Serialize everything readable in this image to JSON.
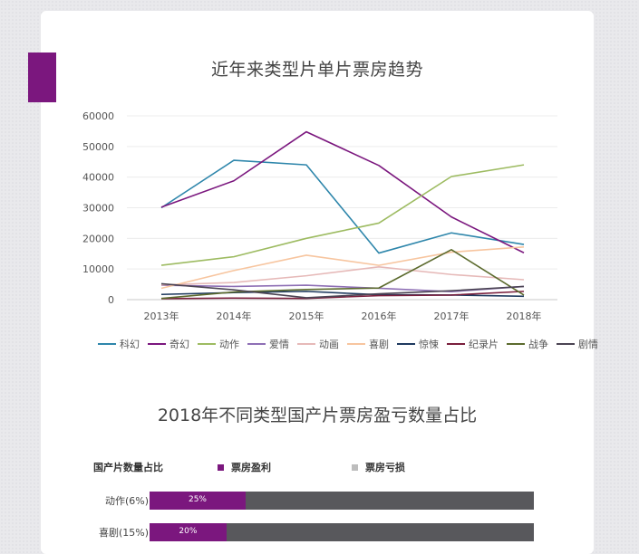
{
  "line_chart_title": "近年来类型片单片票房趋势",
  "bar_chart_title": "2018年不同类型国产片票房盈亏数量占比",
  "colors": {
    "accent": "#7b177e",
    "loss": "#58585c",
    "legend_loss_swatch": "#bdbdbd"
  },
  "chart_data": [
    {
      "type": "line",
      "title": "近年来类型片单片票房趋势",
      "x": [
        "2013年",
        "2014年",
        "2015年",
        "2016年",
        "2017年",
        "2018年"
      ],
      "ylim": [
        0,
        60000
      ],
      "yticks": [
        0,
        10000,
        20000,
        30000,
        40000,
        50000,
        60000
      ],
      "grid": true,
      "legend": "bottom",
      "series": [
        {
          "name": "科幻",
          "color": "#2e86ab",
          "values": [
            30000,
            45500,
            44000,
            15200,
            21800,
            18000
          ]
        },
        {
          "name": "奇幻",
          "color": "#7b177e",
          "values": [
            30200,
            38800,
            54800,
            43800,
            27000,
            15300
          ]
        },
        {
          "name": "动作",
          "color": "#9dbb61",
          "values": [
            11200,
            14000,
            20000,
            25000,
            40200,
            44000
          ]
        },
        {
          "name": "爱情",
          "color": "#8e6fb5",
          "values": [
            4700,
            4300,
            4700,
            3700,
            2600,
            4300
          ]
        },
        {
          "name": "动画",
          "color": "#e6b9b8",
          "values": [
            4800,
            5600,
            7800,
            10700,
            8200,
            6500
          ]
        },
        {
          "name": "喜剧",
          "color": "#f7c59f",
          "values": [
            3700,
            9500,
            14500,
            11200,
            15500,
            17200
          ]
        },
        {
          "name": "惊悚",
          "color": "#1f3a5f",
          "values": [
            1700,
            2300,
            2700,
            1600,
            1500,
            1100
          ]
        },
        {
          "name": "纪录片",
          "color": "#7a1f3d",
          "values": [
            300,
            500,
            400,
            1300,
            1500,
            2700
          ]
        },
        {
          "name": "战争",
          "color": "#5c6b2e",
          "values": [
            400,
            2500,
            3300,
            3800,
            16300,
            1500
          ]
        },
        {
          "name": "剧情",
          "color": "#4b4453",
          "values": [
            5200,
            3200,
            600,
            1900,
            2900,
            4300
          ]
        }
      ]
    },
    {
      "type": "bar",
      "title": "2018年不同类型国产片票房盈亏数量占比",
      "header_label": "国产片数量占比",
      "legend": [
        {
          "name": "票房盈利",
          "color": "#7b177e"
        },
        {
          "name": "票房亏损",
          "color": "#bdbdbd"
        }
      ],
      "categories": [
        "动作(6%)",
        "喜剧(15%)"
      ],
      "series": [
        {
          "name": "票房盈利",
          "values": [
            25,
            20
          ],
          "labels": [
            "25%",
            "20%"
          ]
        },
        {
          "name": "票房亏损",
          "values": [
            75,
            80
          ]
        }
      ]
    }
  ]
}
